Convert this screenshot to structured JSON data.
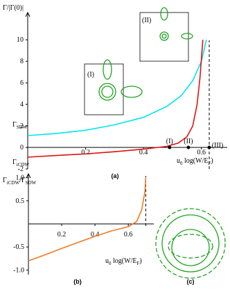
{
  "chart_data": [
    {
      "type": "line",
      "panel_label": "(a)",
      "y_label": [
        {
          "text": "Γ/|Γ(0)|"
        }
      ],
      "x_label": [
        {
          "text": "u"
        },
        {
          "text": "0",
          "sub": true
        },
        {
          "text": " log"
        },
        {
          "text": "("
        },
        {
          "text": "W"
        },
        {
          "text": "/"
        },
        {
          "text": "E"
        },
        {
          "text": "F",
          "sub": true
        },
        {
          "text": ")"
        }
      ],
      "xlim": [
        0,
        0.67
      ],
      "ylim": [
        -2,
        11.5
      ],
      "xticks": [
        0.2,
        0.4,
        0.6
      ],
      "yticks": [
        -2,
        0,
        2,
        4,
        6,
        8,
        10
      ],
      "divergence": 0.627,
      "series": [
        {
          "name": [
            {
              "text": "Γ"
            },
            {
              "text": "SDW",
              "sub": true
            }
          ],
          "color": "#00e5f0",
          "x": [
            0,
            0.1,
            0.2,
            0.3,
            0.4,
            0.48,
            0.53,
            0.57,
            0.6,
            0.617
          ],
          "values": [
            1.1,
            1.3,
            1.6,
            2.1,
            2.8,
            3.8,
            4.8,
            6.2,
            8.0,
            10
          ]
        },
        {
          "name": [
            {
              "text": "Γ"
            },
            {
              "text": "iCDW",
              "sub": true
            }
          ],
          "color": "#e01010",
          "x": [
            0,
            0.1,
            0.2,
            0.3,
            0.4,
            0.48,
            0.52,
            0.55,
            0.57,
            0.585,
            0.595,
            0.605
          ],
          "values": [
            -0.9,
            -0.75,
            -0.6,
            -0.4,
            -0.15,
            0.1,
            0.4,
            1.0,
            2.0,
            4.0,
            6.5,
            10
          ]
        }
      ],
      "markers": [
        {
          "label": "(I)",
          "x": 0.49
        },
        {
          "label": "(II)",
          "x": 0.555
        },
        {
          "label": "(III)",
          "x": 0.627
        }
      ],
      "insets": [
        "(I)",
        "(II)"
      ]
    },
    {
      "type": "line",
      "panel_label": "(b)",
      "y_label": [
        {
          "text": "Γ"
        },
        {
          "text": "iCDW",
          "sub": true
        },
        {
          "text": "/Γ"
        },
        {
          "text": "SDW",
          "sub": true
        }
      ],
      "x_label": [
        {
          "text": "u"
        },
        {
          "text": "0",
          "sub": true
        },
        {
          "text": " log"
        },
        {
          "text": "("
        },
        {
          "text": "W"
        },
        {
          "text": "/"
        },
        {
          "text": "E"
        },
        {
          "text": "F",
          "sub": true
        },
        {
          "text": ")"
        }
      ],
      "xlim": [
        0,
        0.72
      ],
      "ylim": [
        -1.1,
        1.1
      ],
      "xticks": [
        0.2,
        0.4,
        0.6
      ],
      "yticks": [
        {
          "value": -1,
          "label": "-1.0"
        },
        -0.5,
        {
          "value": 0.5,
          "label": "0.5"
        },
        {
          "value": 1,
          "label": "1.0"
        }
      ],
      "divergence": 0.705,
      "series": [
        {
          "color": "#f07820",
          "x": [
            0,
            0.1,
            0.2,
            0.3,
            0.4,
            0.5,
            0.6,
            0.65,
            0.68,
            0.7,
            0.705
          ],
          "values": [
            -0.8,
            -0.67,
            -0.53,
            -0.4,
            -0.27,
            -0.15,
            -0.06,
            0.05,
            0.3,
            0.7,
            1.0
          ]
        }
      ]
    }
  ],
  "diagram": {
    "label": "(c)"
  }
}
